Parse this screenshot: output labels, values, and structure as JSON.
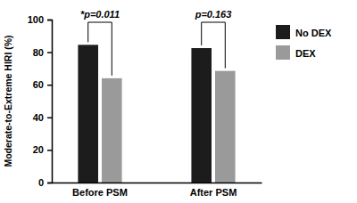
{
  "chart_data": {
    "type": "bar",
    "y_label": "Moderate-to-Extreme HIRI (%)",
    "categories": [
      "Before PSM",
      "After PSM"
    ],
    "series": [
      {
        "name": "No DEX",
        "color": "#1c1c1c",
        "values": [
          84.5,
          82.5
        ]
      },
      {
        "name": "DEX",
        "color": "#9a9a9a",
        "values": [
          64,
          68.5
        ]
      }
    ],
    "annotations": [
      "*p=0.011",
      "p=0.163"
    ],
    "ylim": [
      0,
      100
    ],
    "yticks": [
      0,
      20,
      40,
      60,
      80,
      100
    ],
    "legend": "upper right"
  }
}
